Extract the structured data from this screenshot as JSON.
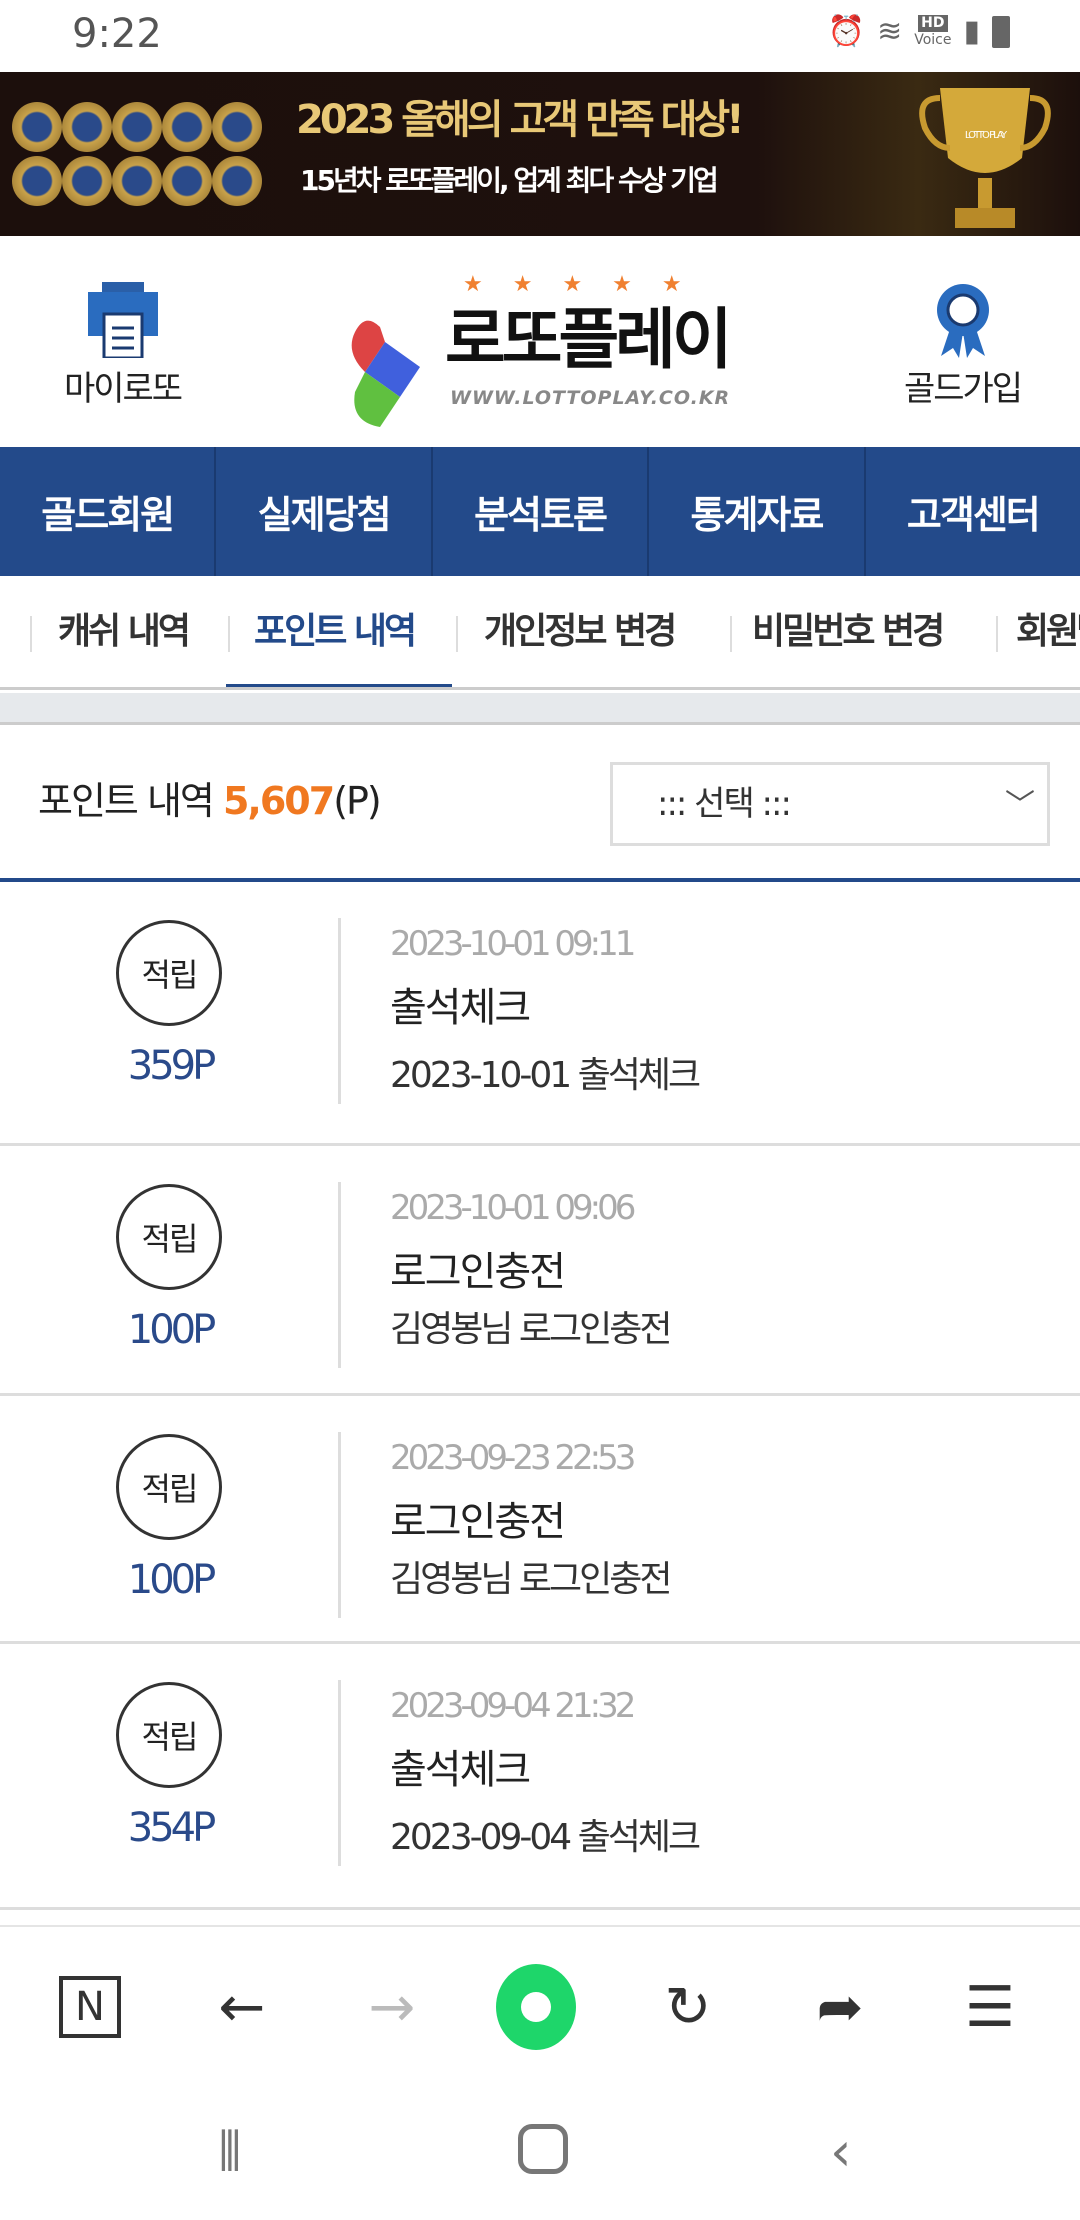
{
  "status": {
    "time": "9:22",
    "icons": [
      "alarm-icon",
      "wifi-icon",
      "hd-voice-icon",
      "signal-icon",
      "battery-icon"
    ],
    "hd": "HD",
    "voice": "Voice"
  },
  "banner": {
    "headline": "2023 올해의 고객 만족 대상!",
    "subline": "15년차 로또플레이, 업계 최다 수상 기업",
    "trophy_text": "LOTTO PLAY"
  },
  "header": {
    "my_lotto": "마이로또",
    "logo_name": "로또플레이",
    "logo_url": "WWW.LOTTOPLAY.CO.KR",
    "stars": "★★★★★",
    "gold_join": "골드가입"
  },
  "nav": [
    "골드회원",
    "실제당첨",
    "분석토론",
    "통계자료",
    "고객센터"
  ],
  "tabs": {
    "items": [
      "캐쉬 내역",
      "포인트 내역",
      "개인정보 변경",
      "비밀번호 변경",
      "회원탈퇴"
    ],
    "active": 1
  },
  "points": {
    "label": "포인트 내역",
    "total": "5,607",
    "unit": "(P)",
    "select_value": "::: 선택 :::"
  },
  "items": [
    {
      "type": "적립",
      "amount": "359P",
      "date": "2023-10-01 09:11",
      "title": "출석체크",
      "desc": "2023-10-01 출석체크"
    },
    {
      "type": "적립",
      "amount": "100P",
      "date": "2023-10-01 09:06",
      "title": "로그인충전",
      "desc": "김영봉님 로그인충전"
    },
    {
      "type": "적립",
      "amount": "100P",
      "date": "2023-09-23 22:53",
      "title": "로그인충전",
      "desc": "김영봉님 로그인충전"
    },
    {
      "type": "적립",
      "amount": "354P",
      "date": "2023-09-04 21:32",
      "title": "출석체크",
      "desc": "2023-09-04 출석체크"
    }
  ],
  "colors": {
    "brand": "#234a8a",
    "accent": "#f07820",
    "browser_green": "#1ed66a"
  }
}
